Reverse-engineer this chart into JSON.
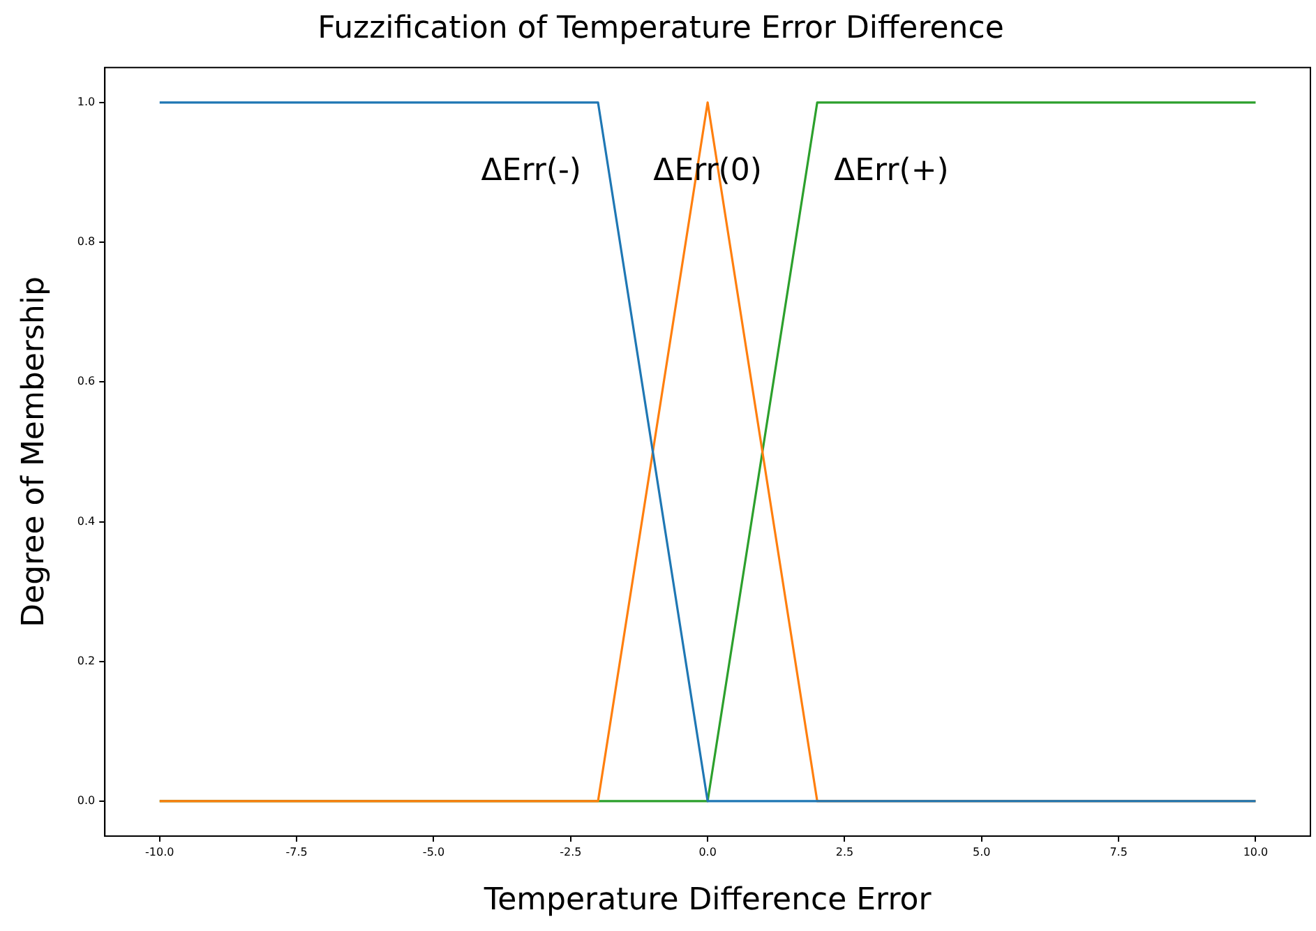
{
  "chart_data": {
    "type": "line",
    "title": "Fuzzification of Temperature Error Difference",
    "xlabel": "Temperature Difference Error",
    "ylabel": "Degree of Membership",
    "series": [
      {
        "name": "ΔErr(-)",
        "color": "#1f77b4",
        "x": [
          -10,
          -2,
          0,
          10
        ],
        "values": [
          1,
          1,
          0,
          0
        ]
      },
      {
        "name": "ΔErr(0)",
        "color": "#ff7f0e",
        "x": [
          -10,
          -2,
          0,
          2,
          10
        ],
        "values": [
          0,
          0,
          1,
          0,
          0
        ]
      },
      {
        "name": "ΔErr(+)",
        "color": "#2ca02c",
        "x": [
          -10,
          0,
          2,
          10
        ],
        "values": [
          0,
          0,
          1,
          1
        ]
      }
    ],
    "xlim": [
      -11,
      11
    ],
    "ylim": [
      -0.05,
      1.05
    ],
    "xticks": [
      {
        "value": -10,
        "label": "-10.0"
      },
      {
        "value": -7.5,
        "label": "-7.5"
      },
      {
        "value": -5,
        "label": "-5.0"
      },
      {
        "value": -2.5,
        "label": "-2.5"
      },
      {
        "value": 0,
        "label": "0.0"
      },
      {
        "value": 2.5,
        "label": "2.5"
      },
      {
        "value": 5,
        "label": "5.0"
      },
      {
        "value": 7.5,
        "label": "7.5"
      },
      {
        "value": 10,
        "label": "10.0"
      }
    ],
    "yticks": [
      {
        "value": 0,
        "label": "0.0"
      },
      {
        "value": 0.2,
        "label": "0.2"
      },
      {
        "value": 0.4,
        "label": "0.4"
      },
      {
        "value": 0.6,
        "label": "0.6"
      },
      {
        "value": 0.8,
        "label": "0.8"
      },
      {
        "value": 1,
        "label": "1.0"
      }
    ],
    "grid": false,
    "legend": false,
    "marker": "none",
    "line_style": "solid"
  }
}
